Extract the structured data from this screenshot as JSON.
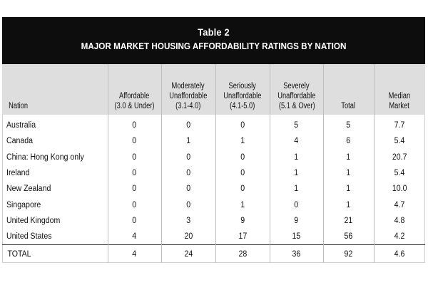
{
  "table": {
    "title": "Table 2",
    "subtitle": "MAJOR MARKET HOUSING AFFORDABILITY RATINGS BY NATION",
    "headers": [
      {
        "line1": "",
        "line2": "",
        "line3": "Nation"
      },
      {
        "line1": "",
        "line2": "Affordable",
        "line3": "(3.0 & Under)"
      },
      {
        "line1": "Moderately",
        "line2": "Unaffordable",
        "line3": "(3.1-4.0)"
      },
      {
        "line1": "Seriously",
        "line2": "Unaffordable",
        "line3": "(4.1-5.0)"
      },
      {
        "line1": "Severely",
        "line2": "Unaffordable",
        "line3": "(5.1 & Over)"
      },
      {
        "line1": "",
        "line2": "",
        "line3": "Total"
      },
      {
        "line1": "",
        "line2": "Median",
        "line3": "Market"
      }
    ],
    "rows": [
      [
        "Australia",
        "0",
        "0",
        "0",
        "5",
        "5",
        "7.7"
      ],
      [
        "Canada",
        "0",
        "1",
        "1",
        "4",
        "6",
        "5.4"
      ],
      [
        "China: Hong Kong only",
        "0",
        "0",
        "0",
        "1",
        "1",
        "20.7"
      ],
      [
        "Ireland",
        "0",
        "0",
        "0",
        "1",
        "1",
        "5.4"
      ],
      [
        "New Zealand",
        "0",
        "0",
        "0",
        "1",
        "1",
        "10.0"
      ],
      [
        "Singapore",
        "0",
        "0",
        "1",
        "0",
        "1",
        "4.7"
      ],
      [
        "United Kingdom",
        "0",
        "3",
        "9",
        "9",
        "21",
        "4.8"
      ],
      [
        "United States",
        "4",
        "20",
        "17",
        "15",
        "56",
        "4.2"
      ]
    ],
    "total": [
      "TOTAL",
      "4",
      "24",
      "28",
      "36",
      "92",
      "4.6"
    ]
  }
}
